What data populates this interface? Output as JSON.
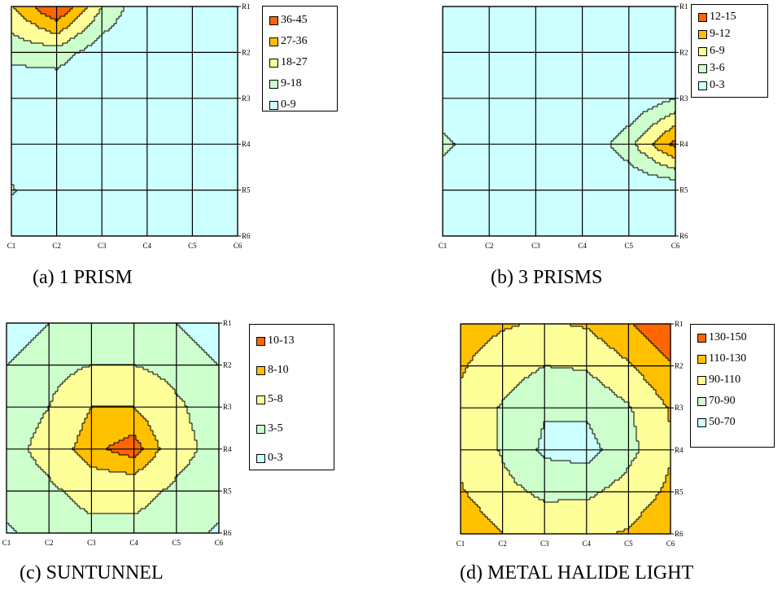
{
  "chart_data": [
    {
      "type": "contour",
      "caption": "(a) 1 PRISM",
      "column_labels": [
        "C1",
        "C2",
        "C3",
        "C4",
        "C5",
        "C6"
      ],
      "row_labels": [
        "R1",
        "R2",
        "R3",
        "R4",
        "R5",
        "R6"
      ],
      "legend": [
        "36-45",
        "27-36",
        "18-27",
        "9-18",
        "0-9"
      ],
      "colors": [
        "#ff6600",
        "#ffc000",
        "#ffff99",
        "#ccffcc",
        "#ccffff"
      ],
      "levels": [
        9,
        18,
        27,
        36
      ],
      "z": [
        [
          26,
          46,
          18,
          0,
          0,
          0
        ],
        [
          12,
          14,
          3,
          0,
          0,
          0
        ],
        [
          1,
          0,
          0,
          0,
          0,
          0
        ],
        [
          2,
          0,
          0,
          0,
          0,
          0
        ],
        [
          10,
          0,
          0,
          0,
          0,
          0
        ],
        [
          3,
          0,
          0,
          0,
          0,
          0
        ]
      ]
    },
    {
      "type": "contour",
      "caption": "(b) 3 PRISMS",
      "column_labels": [
        "C1",
        "C2",
        "C3",
        "C4",
        "C5",
        "C6"
      ],
      "row_labels": [
        "R1",
        "R2",
        "R3",
        "R4",
        "R5",
        "R6"
      ],
      "legend": [
        "12-15",
        "9-12",
        "6-9",
        "3-6",
        "0-3"
      ],
      "colors": [
        "#ff6600",
        "#ffc000",
        "#ffff99",
        "#ccffcc",
        "#ccffff"
      ],
      "levels": [
        3,
        6,
        9,
        12
      ],
      "z": [
        [
          0,
          0,
          0,
          0,
          0,
          0
        ],
        [
          0,
          0,
          0,
          0,
          0,
          0
        ],
        [
          0,
          0,
          0,
          0,
          0,
          3
        ],
        [
          4,
          0,
          0,
          0,
          5,
          13
        ],
        [
          0,
          0,
          0,
          0,
          0,
          0
        ],
        [
          0,
          0,
          0,
          0,
          0,
          0
        ]
      ]
    },
    {
      "type": "contour",
      "caption": "(c) SUNTUNNEL",
      "column_labels": [
        "C1",
        "C2",
        "C3",
        "C4",
        "C5",
        "C6"
      ],
      "row_labels": [
        "R1",
        "R2",
        "R3",
        "R4",
        "R5",
        "R6"
      ],
      "legend": [
        "10-13",
        "8-10",
        "5-8",
        "3-5",
        "0-3"
      ],
      "colors": [
        "#ff6600",
        "#ffc000",
        "#ffff99",
        "#ccffcc",
        "#ccffff"
      ],
      "levels": [
        3,
        5,
        8,
        10
      ],
      "z": [
        [
          2,
          3,
          3.5,
          3.5,
          3,
          2
        ],
        [
          3,
          4,
          5,
          5,
          4,
          3
        ],
        [
          3.5,
          5,
          8,
          8,
          5.5,
          3.5
        ],
        [
          4,
          6,
          9.5,
          11,
          6,
          4
        ],
        [
          3.5,
          4.5,
          6,
          6,
          4.5,
          3.5
        ],
        [
          2.8,
          3.5,
          4.2,
          4.2,
          3.5,
          2.8
        ]
      ]
    },
    {
      "type": "contour",
      "caption": "(d) METAL HALIDE LIGHT",
      "column_labels": [
        "C1",
        "C2",
        "C3",
        "C4",
        "C5",
        "C6"
      ],
      "row_labels": [
        "R1",
        "R2",
        "R3",
        "R4",
        "R5",
        "R6"
      ],
      "legend": [
        "130-150",
        "110-130",
        "90-110",
        "70-90",
        "50-70"
      ],
      "colors": [
        "#ff6600",
        "#ffc000",
        "#ffff99",
        "#ccffcc",
        "#ccffff"
      ],
      "levels": [
        70,
        90,
        110,
        130
      ],
      "z": [
        [
          118,
          112,
          108,
          112,
          128,
          148
        ],
        [
          112,
          100,
          90,
          92,
          108,
          128
        ],
        [
          106,
          88,
          72,
          74,
          88,
          112
        ],
        [
          104,
          88,
          66,
          62,
          84,
          108
        ],
        [
          112,
          96,
          86,
          86,
          98,
          114
        ],
        [
          124,
          110,
          104,
          106,
          112,
          126
        ]
      ]
    }
  ]
}
